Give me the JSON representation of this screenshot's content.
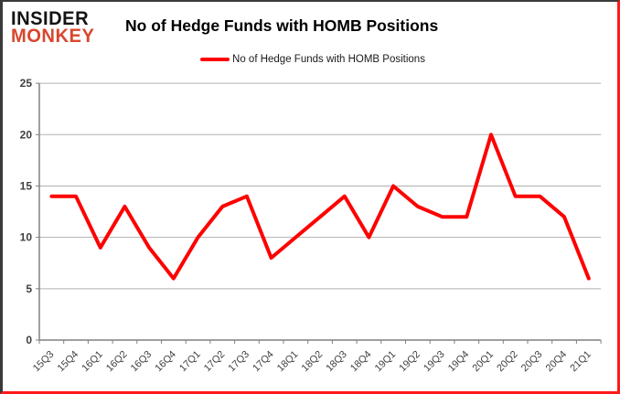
{
  "logo": {
    "line1": "INSIDER",
    "line2": "MONKEY"
  },
  "header": {
    "title": "No of Hedge Funds with HOMB Positions"
  },
  "legend": {
    "label": "No of Hedge Funds with HOMB Positions"
  },
  "colors": {
    "line": "#fe0000",
    "logo_accent": "#d9472e",
    "logo_dark": "#141414",
    "grid": "#b0b0b0",
    "axis": "#808080",
    "tick_text": "#3f3f3f"
  },
  "chart_data": {
    "type": "line",
    "title": "No of Hedge Funds with HOMB Positions",
    "categories": [
      "15Q3",
      "15Q4",
      "16Q1",
      "16Q2",
      "16Q3",
      "16Q4",
      "17Q1",
      "17Q2",
      "17Q3",
      "17Q4",
      "18Q1",
      "18Q2",
      "18Q3",
      "18Q4",
      "19Q1",
      "19Q2",
      "19Q3",
      "19Q4",
      "20Q1",
      "20Q2",
      "20Q3",
      "20Q4",
      "21Q1"
    ],
    "series": [
      {
        "name": "No of Hedge Funds with HOMB Positions",
        "values": [
          14,
          14,
          9,
          13,
          9,
          6,
          10,
          13,
          14,
          8,
          10,
          12,
          14,
          10,
          15,
          13,
          12,
          12,
          20,
          14,
          14,
          12,
          6
        ]
      }
    ],
    "xlabel": "",
    "ylabel": "",
    "ylim": [
      0,
      25
    ],
    "ytick_step": 5,
    "grid": true,
    "legend_position": "top-center"
  }
}
